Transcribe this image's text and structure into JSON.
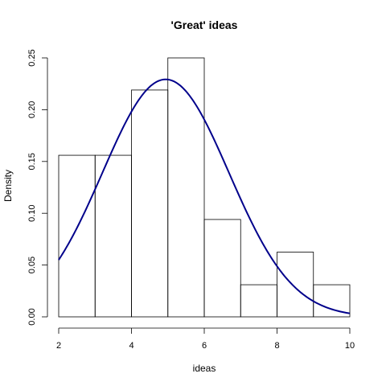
{
  "chart_data": {
    "type": "bar",
    "title": "'Great' ideas",
    "xlabel": "ideas",
    "ylabel": "Density",
    "xlim": [
      2,
      10
    ],
    "ylim": [
      0,
      0.25
    ],
    "xticks": [
      "2",
      "4",
      "6",
      "8",
      "10"
    ],
    "yticks": [
      "0.00",
      "0.05",
      "0.10",
      "0.15",
      "0.20",
      "0.25"
    ],
    "bins": [
      {
        "from": 2,
        "to": 3,
        "density": 0.156
      },
      {
        "from": 3,
        "to": 4,
        "density": 0.156
      },
      {
        "from": 4,
        "to": 5,
        "density": 0.219
      },
      {
        "from": 5,
        "to": 6,
        "density": 0.25
      },
      {
        "from": 6,
        "to": 7,
        "density": 0.094
      },
      {
        "from": 7,
        "to": 8,
        "density": 0.031
      },
      {
        "from": 8,
        "to": 9,
        "density": 0.0625
      },
      {
        "from": 9,
        "to": 10,
        "density": 0.031
      }
    ],
    "curve": {
      "type": "normal-density",
      "mean": 4.94,
      "sd": 1.74,
      "color": "#00008B"
    },
    "grid": false,
    "legend": "none"
  }
}
